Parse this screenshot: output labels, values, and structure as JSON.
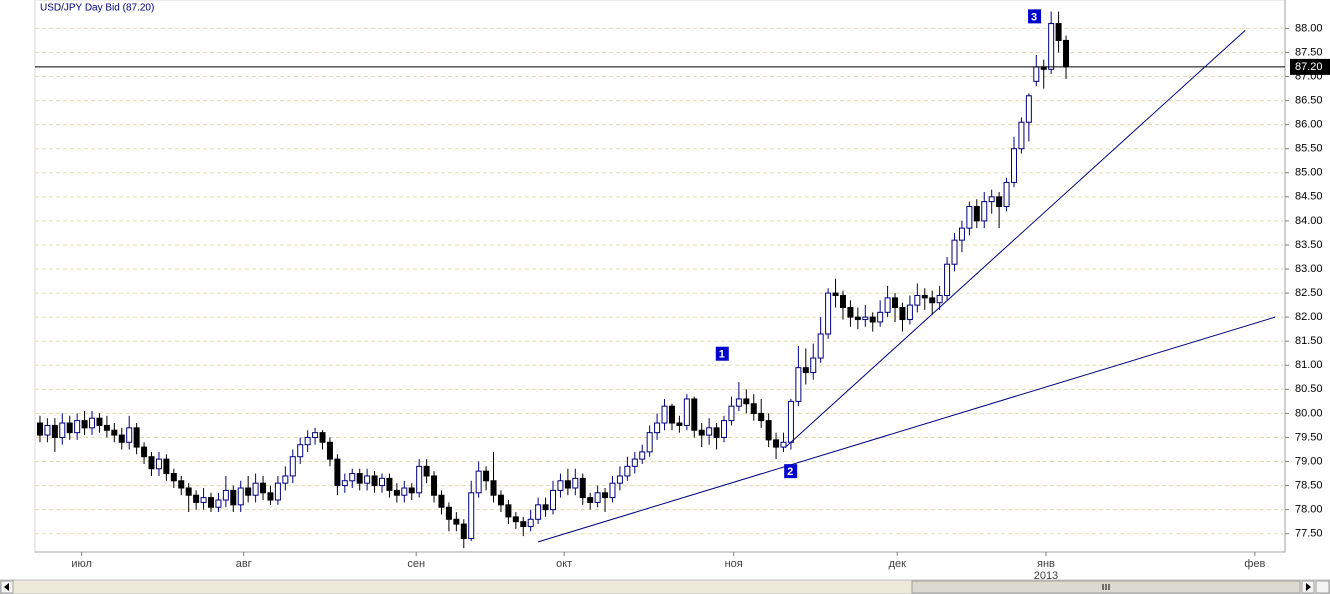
{
  "chart_data": {
    "type": "candlestick",
    "title": "USD/JPY Day Bid (87.20)",
    "ylim": [
      77.12,
      88.59
    ],
    "xlim": [
      -0.67,
      167.45
    ],
    "yticks": [
      {
        "value": 77.5,
        "label": "77.50"
      },
      {
        "value": 78,
        "label": "78.00"
      },
      {
        "value": 78.5,
        "label": "78.50"
      },
      {
        "value": 79,
        "label": "79.00"
      },
      {
        "value": 79.5,
        "label": "79.50"
      },
      {
        "value": 80,
        "label": "80.00"
      },
      {
        "value": 80.5,
        "label": "80.50"
      },
      {
        "value": 81,
        "label": "81.00"
      },
      {
        "value": 81.5,
        "label": "81.50"
      },
      {
        "value": 82,
        "label": "82.00"
      },
      {
        "value": 82.5,
        "label": "82.50"
      },
      {
        "value": 83,
        "label": "83.00"
      },
      {
        "value": 83.5,
        "label": "83.50"
      },
      {
        "value": 84,
        "label": "84.00"
      },
      {
        "value": 84.5,
        "label": "84.50"
      },
      {
        "value": 85,
        "label": "85.00"
      },
      {
        "value": 85.5,
        "label": "85.50"
      },
      {
        "value": 86,
        "label": "86.00"
      },
      {
        "value": 86.5,
        "label": "86.50"
      },
      {
        "value": 87,
        "label": "87.00"
      },
      {
        "value": 87.5,
        "label": "87.50"
      },
      {
        "value": 88,
        "label": "88.00"
      }
    ],
    "xticks": [
      {
        "value": 5.6,
        "label": "июл"
      },
      {
        "value": 27.4,
        "label": "авг"
      },
      {
        "value": 50.6,
        "label": "сен"
      },
      {
        "value": 70.5,
        "label": "окт"
      },
      {
        "value": 93.3,
        "label": "ноя"
      },
      {
        "value": 115.3,
        "label": "дек"
      },
      {
        "value": 135.3,
        "label": "янв"
      },
      {
        "value": 163.4,
        "label": "фев"
      }
    ],
    "year_label": "2013",
    "grid": true,
    "up_color": "#ffffff",
    "down_color": "#000000",
    "outline_color": "#000080",
    "price_line": {
      "value": 87.2,
      "label": "87.20"
    },
    "trendlines": [
      {
        "x": [
          67.0,
          166.1
        ],
        "y": [
          77.33,
          82.0
        ],
        "color": "#000080"
      },
      {
        "x": [
          100.2,
          162.1
        ],
        "y": [
          79.29,
          87.96
        ],
        "color": "#000080"
      }
    ],
    "annotations": [
      {
        "text": "1",
        "x": 91.7,
        "y": 81.24
      },
      {
        "text": "2",
        "x": 100.9,
        "y": 78.8
      },
      {
        "text": "3",
        "x": 133.7,
        "y": 88.25
      }
    ],
    "ohlc": [
      [
        79.8,
        79.95,
        79.4,
        79.55
      ],
      [
        79.55,
        79.9,
        79.4,
        79.75
      ],
      [
        79.75,
        79.9,
        79.2,
        79.5
      ],
      [
        79.5,
        80.0,
        79.35,
        79.8
      ],
      [
        79.8,
        79.95,
        79.45,
        79.6
      ],
      [
        79.6,
        80.0,
        79.45,
        79.85
      ],
      [
        79.85,
        80.05,
        79.55,
        79.7
      ],
      [
        79.7,
        80.05,
        79.55,
        79.9
      ],
      [
        79.9,
        80.0,
        79.6,
        79.75
      ],
      [
        79.75,
        79.95,
        79.5,
        79.65
      ],
      [
        79.65,
        79.8,
        79.4,
        79.55
      ],
      [
        79.55,
        79.7,
        79.25,
        79.4
      ],
      [
        79.4,
        79.95,
        79.25,
        79.7
      ],
      [
        79.7,
        79.8,
        79.15,
        79.3
      ],
      [
        79.3,
        79.4,
        78.95,
        79.1
      ],
      [
        79.1,
        79.2,
        78.7,
        78.85
      ],
      [
        78.85,
        79.2,
        78.7,
        79.05
      ],
      [
        79.05,
        79.15,
        78.6,
        78.75
      ],
      [
        78.75,
        78.85,
        78.45,
        78.6
      ],
      [
        78.6,
        78.7,
        78.3,
        78.45
      ],
      [
        78.45,
        78.55,
        77.95,
        78.3
      ],
      [
        78.3,
        78.4,
        78.0,
        78.15
      ],
      [
        78.15,
        78.45,
        78.0,
        78.25
      ],
      [
        78.25,
        78.35,
        77.95,
        78.05
      ],
      [
        78.05,
        78.35,
        77.95,
        78.2
      ],
      [
        78.2,
        78.7,
        78.05,
        78.4
      ],
      [
        78.4,
        78.5,
        77.95,
        78.1
      ],
      [
        78.1,
        78.6,
        77.95,
        78.45
      ],
      [
        78.45,
        78.7,
        78.15,
        78.3
      ],
      [
        78.3,
        78.75,
        78.15,
        78.55
      ],
      [
        78.55,
        78.7,
        78.2,
        78.35
      ],
      [
        78.35,
        78.5,
        78.1,
        78.2
      ],
      [
        78.2,
        78.7,
        78.1,
        78.55
      ],
      [
        78.55,
        78.9,
        78.4,
        78.7
      ],
      [
        78.7,
        79.25,
        78.55,
        79.1
      ],
      [
        79.1,
        79.5,
        78.95,
        79.35
      ],
      [
        79.35,
        79.65,
        79.2,
        79.5
      ],
      [
        79.5,
        79.7,
        79.35,
        79.6
      ],
      [
        79.6,
        79.65,
        79.25,
        79.4
      ],
      [
        79.4,
        79.5,
        78.9,
        79.05
      ],
      [
        79.05,
        79.15,
        78.3,
        78.5
      ],
      [
        78.5,
        78.75,
        78.35,
        78.6
      ],
      [
        78.6,
        78.85,
        78.45,
        78.75
      ],
      [
        78.75,
        78.85,
        78.4,
        78.55
      ],
      [
        78.55,
        78.85,
        78.4,
        78.7
      ],
      [
        78.7,
        78.8,
        78.35,
        78.5
      ],
      [
        78.5,
        78.75,
        78.35,
        78.65
      ],
      [
        78.65,
        78.75,
        78.25,
        78.4
      ],
      [
        78.4,
        78.55,
        78.15,
        78.3
      ],
      [
        78.3,
        78.6,
        78.15,
        78.45
      ],
      [
        78.45,
        78.55,
        78.2,
        78.35
      ],
      [
        78.35,
        79.05,
        78.25,
        78.9
      ],
      [
        78.9,
        79.05,
        78.55,
        78.7
      ],
      [
        78.7,
        78.8,
        78.15,
        78.3
      ],
      [
        78.3,
        78.4,
        77.9,
        78.05
      ],
      [
        78.05,
        78.15,
        77.55,
        77.8
      ],
      [
        77.8,
        77.95,
        77.55,
        77.7
      ],
      [
        77.7,
        77.8,
        77.2,
        77.4
      ],
      [
        77.4,
        78.6,
        77.35,
        78.35
      ],
      [
        78.35,
        79.0,
        78.25,
        78.8
      ],
      [
        78.8,
        78.9,
        78.4,
        78.6
      ],
      [
        78.6,
        79.2,
        78.15,
        78.3
      ],
      [
        78.3,
        78.4,
        77.95,
        78.1
      ],
      [
        78.1,
        78.2,
        77.7,
        77.85
      ],
      [
        77.85,
        77.95,
        77.6,
        77.75
      ],
      [
        77.75,
        77.85,
        77.45,
        77.65
      ],
      [
        77.65,
        78.0,
        77.55,
        77.8
      ],
      [
        77.8,
        78.25,
        77.7,
        78.1
      ],
      [
        78.1,
        78.25,
        77.85,
        78.0
      ],
      [
        78.0,
        78.6,
        77.9,
        78.4
      ],
      [
        78.4,
        78.75,
        78.25,
        78.6
      ],
      [
        78.6,
        78.85,
        78.3,
        78.45
      ],
      [
        78.45,
        78.85,
        78.3,
        78.65
      ],
      [
        78.65,
        78.75,
        78.1,
        78.25
      ],
      [
        78.25,
        78.35,
        78.0,
        78.15
      ],
      [
        78.15,
        78.5,
        78.05,
        78.35
      ],
      [
        78.35,
        78.45,
        77.95,
        78.25
      ],
      [
        78.25,
        78.7,
        78.15,
        78.55
      ],
      [
        78.55,
        78.9,
        78.4,
        78.7
      ],
      [
        78.7,
        79.1,
        78.6,
        78.9
      ],
      [
        78.9,
        79.2,
        78.75,
        79.05
      ],
      [
        79.05,
        79.35,
        78.95,
        79.2
      ],
      [
        79.2,
        79.75,
        79.1,
        79.6
      ],
      [
        79.6,
        80.0,
        79.45,
        79.8
      ],
      [
        79.8,
        80.3,
        79.65,
        80.15
      ],
      [
        80.15,
        80.2,
        79.65,
        79.8
      ],
      [
        79.8,
        79.95,
        79.6,
        79.75
      ],
      [
        79.75,
        80.4,
        79.65,
        80.3
      ],
      [
        80.3,
        80.35,
        79.5,
        79.65
      ],
      [
        79.65,
        79.8,
        79.3,
        79.55
      ],
      [
        79.55,
        79.9,
        79.35,
        79.7
      ],
      [
        79.7,
        79.8,
        79.25,
        79.5
      ],
      [
        79.5,
        79.95,
        79.4,
        79.85
      ],
      [
        79.85,
        80.35,
        79.75,
        80.15
      ],
      [
        80.15,
        80.65,
        80.05,
        80.3
      ],
      [
        80.3,
        80.5,
        80.0,
        80.2
      ],
      [
        80.2,
        80.4,
        79.85,
        80.0
      ],
      [
        80.0,
        80.3,
        79.7,
        79.85
      ],
      [
        79.85,
        80.0,
        79.3,
        79.45
      ],
      [
        79.45,
        79.6,
        79.05,
        79.3
      ],
      [
        79.3,
        79.6,
        79.2,
        79.4
      ],
      [
        79.4,
        80.3,
        79.25,
        80.25
      ],
      [
        80.25,
        81.4,
        80.15,
        80.95
      ],
      [
        80.95,
        81.35,
        80.6,
        80.85
      ],
      [
        80.85,
        81.45,
        80.7,
        81.15
      ],
      [
        81.15,
        82.0,
        81.05,
        81.65
      ],
      [
        81.65,
        82.6,
        81.55,
        82.5
      ],
      [
        82.5,
        82.8,
        82.2,
        82.45
      ],
      [
        82.45,
        82.55,
        81.95,
        82.2
      ],
      [
        82.2,
        82.35,
        81.8,
        82.0
      ],
      [
        82.0,
        82.2,
        81.75,
        81.95
      ],
      [
        81.95,
        82.25,
        81.8,
        82.0
      ],
      [
        82.0,
        82.1,
        81.7,
        81.9
      ],
      [
        81.9,
        82.35,
        81.8,
        82.1
      ],
      [
        82.1,
        82.65,
        82.0,
        82.4
      ],
      [
        82.4,
        82.5,
        81.9,
        82.2
      ],
      [
        82.2,
        82.3,
        81.7,
        81.95
      ],
      [
        81.95,
        82.45,
        81.85,
        82.25
      ],
      [
        82.25,
        82.7,
        82.1,
        82.45
      ],
      [
        82.45,
        82.6,
        82.15,
        82.4
      ],
      [
        82.4,
        82.55,
        82.05,
        82.3
      ],
      [
        82.3,
        82.65,
        82.15,
        82.45
      ],
      [
        82.45,
        83.25,
        82.35,
        83.1
      ],
      [
        83.1,
        83.75,
        82.95,
        83.6
      ],
      [
        83.6,
        84.0,
        83.35,
        83.85
      ],
      [
        83.85,
        84.4,
        83.7,
        84.3
      ],
      [
        84.3,
        84.45,
        83.85,
        84.0
      ],
      [
        84.0,
        84.6,
        83.85,
        84.4
      ],
      [
        84.4,
        84.65,
        84.15,
        84.5
      ],
      [
        84.5,
        84.6,
        83.85,
        84.3
      ],
      [
        84.3,
        84.9,
        84.2,
        84.8
      ],
      [
        84.8,
        85.75,
        84.7,
        85.5
      ],
      [
        85.5,
        86.15,
        85.4,
        86.05
      ],
      [
        86.05,
        86.65,
        85.65,
        86.6
      ],
      [
        86.9,
        87.45,
        86.8,
        87.2
      ],
      [
        87.2,
        87.35,
        86.75,
        87.15
      ],
      [
        87.15,
        88.35,
        87.05,
        88.1
      ],
      [
        88.1,
        88.35,
        87.5,
        87.75
      ],
      [
        87.75,
        87.85,
        86.95,
        87.2
      ]
    ]
  }
}
